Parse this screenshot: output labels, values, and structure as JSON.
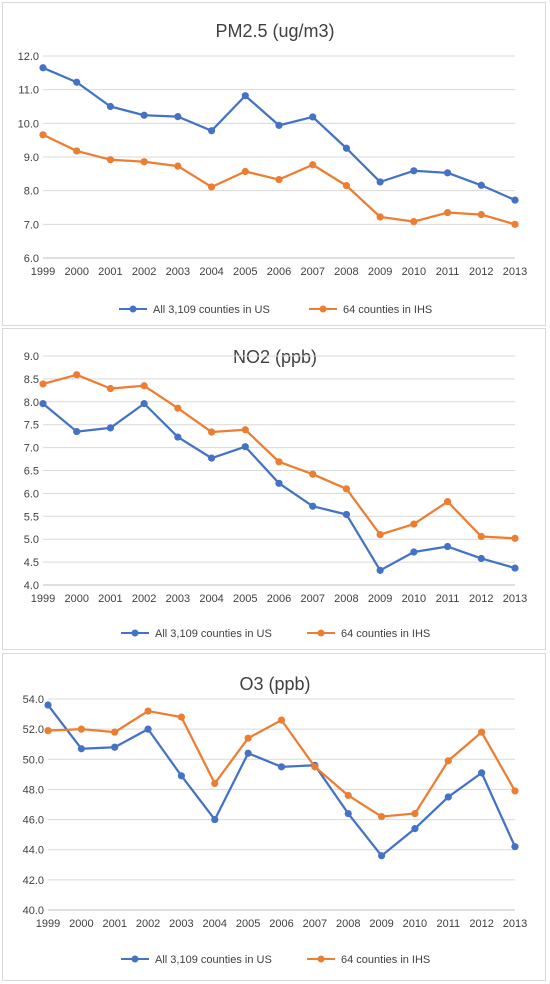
{
  "chart_data": [
    {
      "type": "line",
      "title": "PM2.5 (ug/m3)",
      "xlabel": "",
      "ylabel": "",
      "x": [
        "1999",
        "2000",
        "2001",
        "2002",
        "2003",
        "2004",
        "2005",
        "2006",
        "2007",
        "2008",
        "2009",
        "2010",
        "2011",
        "2012",
        "2013"
      ],
      "ylim": [
        6.0,
        12.0
      ],
      "ystep": 1.0,
      "ydecimals": 1,
      "grid": true,
      "legend": "bottom",
      "series": [
        {
          "name": "All 3,109 counties in US",
          "color": "#4472c4",
          "values": [
            11.65,
            11.22,
            10.5,
            10.24,
            10.2,
            9.78,
            10.82,
            9.94,
            10.19,
            9.26,
            8.26,
            8.59,
            8.53,
            8.16,
            7.72
          ]
        },
        {
          "name": "64 counties in IHS",
          "color": "#ed7d31",
          "values": [
            9.66,
            9.18,
            8.92,
            8.86,
            8.73,
            8.11,
            8.57,
            8.33,
            8.77,
            8.15,
            7.22,
            7.08,
            7.35,
            7.29,
            7.0
          ]
        }
      ]
    },
    {
      "type": "line",
      "title": "NO2 (ppb)",
      "xlabel": "",
      "ylabel": "",
      "x": [
        "1999",
        "2000",
        "2001",
        "2002",
        "2003",
        "2004",
        "2005",
        "2006",
        "2007",
        "2008",
        "2009",
        "2010",
        "2011",
        "2012",
        "2013"
      ],
      "ylim": [
        4.0,
        9.0
      ],
      "ystep": 0.5,
      "ydecimals": 1,
      "grid": true,
      "legend": "bottom",
      "series": [
        {
          "name": "All 3,109 counties in US",
          "color": "#4472c4",
          "values": [
            7.96,
            7.35,
            7.43,
            7.96,
            7.23,
            6.77,
            7.02,
            6.22,
            5.72,
            5.54,
            4.32,
            4.72,
            4.84,
            4.58,
            4.37
          ]
        },
        {
          "name": "64 counties in IHS",
          "color": "#ed7d31",
          "values": [
            8.39,
            8.59,
            8.29,
            8.35,
            7.86,
            7.34,
            7.39,
            6.69,
            6.42,
            6.1,
            5.1,
            5.33,
            5.82,
            5.06,
            5.02
          ]
        }
      ]
    },
    {
      "type": "line",
      "title": "O3 (ppb)",
      "xlabel": "",
      "ylabel": "",
      "x": [
        "1999",
        "2000",
        "2001",
        "2002",
        "2003",
        "2004",
        "2005",
        "2006",
        "2007",
        "2008",
        "2009",
        "2010",
        "2011",
        "2012",
        "2013"
      ],
      "ylim": [
        40.0,
        54.0
      ],
      "ystep": 2.0,
      "ydecimals": 1,
      "grid": true,
      "legend": "bottom",
      "series": [
        {
          "name": "All 3,109 counties in US",
          "color": "#4472c4",
          "values": [
            53.6,
            50.7,
            50.8,
            52.0,
            48.9,
            46.0,
            50.4,
            49.5,
            49.6,
            46.4,
            43.6,
            45.4,
            47.5,
            49.1,
            44.2
          ]
        },
        {
          "name": "64 counties in IHS",
          "color": "#ed7d31",
          "values": [
            51.9,
            52.0,
            51.8,
            53.2,
            52.8,
            48.4,
            51.4,
            52.6,
            49.5,
            47.6,
            46.2,
            46.4,
            49.9,
            51.8,
            47.9
          ]
        }
      ]
    }
  ]
}
